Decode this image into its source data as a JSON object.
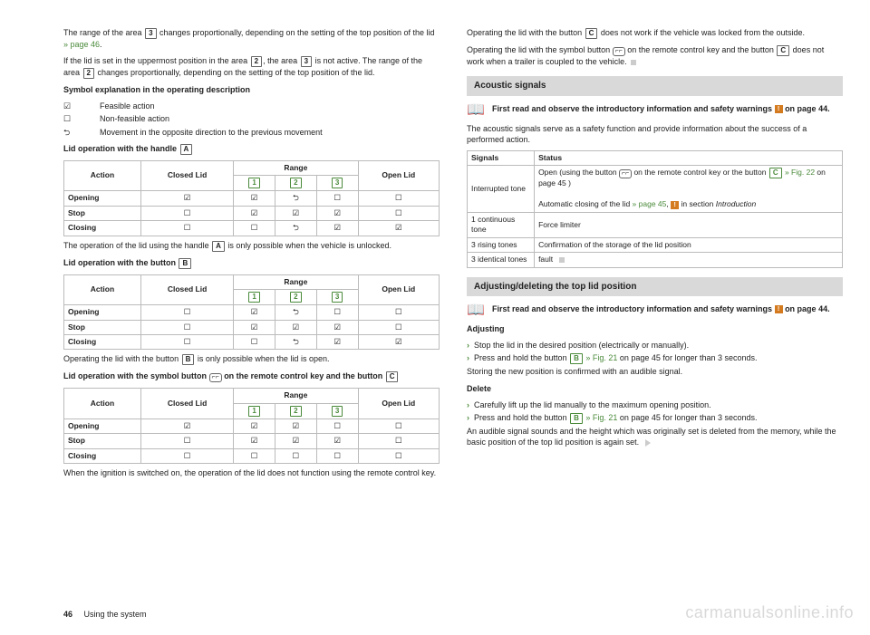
{
  "icons": {
    "checked": "☑",
    "unchecked": "☐",
    "reverse": "⮌",
    "book": "📖",
    "remote": "⌐⌐"
  },
  "keys": {
    "k1": "1",
    "k2": "2",
    "k3": "3",
    "kA": "A",
    "kB": "B",
    "kC": "C"
  },
  "left": {
    "p1a": "The range of the area ",
    "p1b": " changes proportionally, depending on the setting of the top position of the lid ",
    "p1_link": "» page 46",
    "p1c": ".",
    "p2a": "If the lid is set in the uppermost position in the area ",
    "p2b": ", the area ",
    "p2c": " is not active. The range of the area ",
    "p2d": " changes proportionally, depending on the setting of the top position of the lid.",
    "sym_title": "Symbol explanation in the operating description",
    "sym_feasible": "Feasible action",
    "sym_nonfeasible": "Non-feasible action",
    "sym_movement": "Movement in the opposite direction to the previous movement",
    "tableA_title_a": "Lid operation with the handle ",
    "tableB_title_a": "Lid operation with the button ",
    "tableC_title_a": "Lid operation with the symbol button ",
    "tableC_title_b": " on the remote control key and the button ",
    "th_action": "Action",
    "th_closed": "Closed Lid",
    "th_range": "Range",
    "th_open": "Open Lid",
    "row_open": "Opening",
    "row_stop": "Stop",
    "row_close": "Closing",
    "tableA": {
      "opening": [
        "checked",
        "checked",
        "reverse",
        "unchecked",
        "unchecked"
      ],
      "stop": [
        "unchecked",
        "checked",
        "checked",
        "checked",
        "unchecked"
      ],
      "closing": [
        "unchecked",
        "unchecked",
        "reverse",
        "checked",
        "checked"
      ]
    },
    "tableB": {
      "opening": [
        "unchecked",
        "checked",
        "reverse",
        "unchecked",
        "unchecked"
      ],
      "stop": [
        "unchecked",
        "checked",
        "checked",
        "checked",
        "unchecked"
      ],
      "closing": [
        "unchecked",
        "unchecked",
        "reverse",
        "checked",
        "checked"
      ]
    },
    "tableC": {
      "opening": [
        "checked",
        "checked",
        "checked",
        "unchecked",
        "unchecked"
      ],
      "stop": [
        "unchecked",
        "checked",
        "checked",
        "checked",
        "unchecked"
      ],
      "closing": [
        "unchecked",
        "unchecked",
        "unchecked",
        "unchecked",
        "unchecked"
      ]
    },
    "afterA_a": "The operation of the lid using the handle ",
    "afterA_b": " is only possible when the vehicle is unlocked.",
    "afterB_a": "Operating the lid with the button ",
    "afterB_b": " is only possible when the lid is open.",
    "afterC": "When the ignition is switched on, the operation of the lid does not function using the remote control key."
  },
  "right": {
    "p1a": "Operating the lid with the button ",
    "p1b": " does not work if the vehicle was locked from the outside.",
    "p2a": "Operating the lid with the symbol button ",
    "p2b": " on the remote control key and the button ",
    "p2c": " does not work when a trailer is coupled to the vehicle.",
    "sec1": "Acoustic signals",
    "readobs_a": "First read and observe the introductory information and safety warnings ",
    "readobs_b": " on page 44.",
    "acoustic_intro": "The acoustic signals serve as a safety function and provide information about the success of a performed action.",
    "th_signals": "Signals",
    "th_status": "Status",
    "sig1_name": "Interrupted tone",
    "sig1_a": "Open (using the button ",
    "sig1_b": " on the remote control key or the button ",
    "sig1_c": " » Fig. 22",
    "sig1_d": " on page 45 )",
    "sig1_e": "Automatic closing of the lid ",
    "sig1_f": "» page 45",
    "sig1_g": ", ",
    "sig1_h": " in section ",
    "sig1_i": "Introduction",
    "sig2_name": "1 continuous tone",
    "sig2_status": "Force limiter",
    "sig3_name": "3 rising tones",
    "sig3_status": "Confirmation of the storage of the lid position",
    "sig4_name": "3 identical tones",
    "sig4_status": "fault",
    "sec2": "Adjusting/deleting the top lid position",
    "adj_title": "Adjusting",
    "adj_li1": "Stop the lid in the desired position (electrically or manually).",
    "adj_li2a": "Press and hold the button ",
    "adj_li2b": " » Fig. 21",
    "adj_li2c": " on page 45 for longer than 3 seconds.",
    "adj_confirm": "Storing the new position is confirmed with an audible signal.",
    "del_title": "Delete",
    "del_li1": "Carefully lift up the lid manually to the maximum opening position.",
    "del_li2a": "Press and hold the button ",
    "del_li2b": " » Fig. 21",
    "del_li2c": " on page 45 for longer than 3 seconds.",
    "del_after": "An audible signal sounds and the height which was originally set is deleted from the memory, while the basic position of the top lid position is again set."
  },
  "footer": {
    "page": "46",
    "section": "Using the system"
  },
  "watermark": "carmanualsonline.info"
}
